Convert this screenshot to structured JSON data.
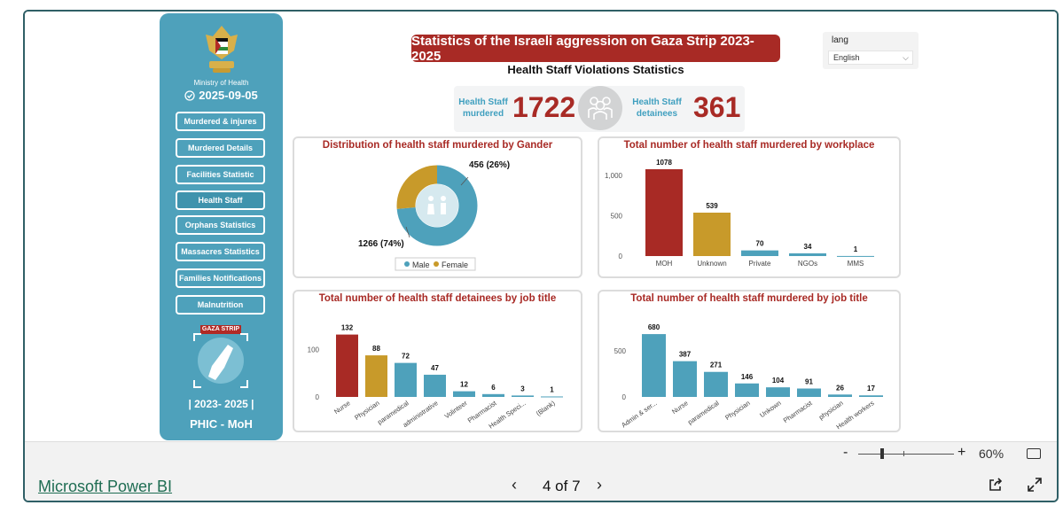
{
  "sidebar": {
    "ministry": "Ministry of Health",
    "date": "2025-09-05",
    "nav": [
      {
        "label": "Murdered & injures"
      },
      {
        "label": "Murdered Details"
      },
      {
        "label": "Facilities Statistic"
      },
      {
        "label": "Health Staff"
      },
      {
        "label": "Orphans Statistics"
      },
      {
        "label": "Massacres Statistics"
      },
      {
        "label": "Families Notifications"
      },
      {
        "label": "Malnutrition"
      }
    ],
    "gaza_label": "GAZA STRIP",
    "years": "|  2023- 2025  |",
    "org": "PHIC - MoH"
  },
  "header": {
    "title": "Statistics of the Israeli aggression on Gaza Strip 2023-2025",
    "subtitle": "Health Staff Violations Statistics"
  },
  "kpi": {
    "murdered_label": "Health Staff murdered",
    "murdered_value": "1722",
    "detainees_label": "Health Staff detainees",
    "detainees_value": "361"
  },
  "lang": {
    "label": "lang",
    "selected": "English"
  },
  "colors": {
    "accent_blue": "#4ea1bb",
    "red": "#a82a25",
    "gold": "#c89a2a"
  },
  "chart_data": [
    {
      "type": "pie",
      "title": "Distribution of health staff murdered by Gander",
      "categories": [
        "Male",
        "Female"
      ],
      "values": [
        1266,
        456
      ],
      "data_labels": [
        "1266 (74%)",
        "456 (26%)"
      ],
      "legend": [
        "Male",
        "Female"
      ]
    },
    {
      "type": "bar",
      "title": "Total number of health staff murdered by workplace",
      "categories": [
        "MOH",
        "Unknown",
        "Private",
        "NGOs",
        "MMS"
      ],
      "values": [
        1078,
        539,
        70,
        34,
        1
      ],
      "y_ticks": [
        "0",
        "500",
        "1,000"
      ],
      "ylim": [
        0,
        1100
      ]
    },
    {
      "type": "bar",
      "title": "Total number of health staff detainees by job title",
      "categories": [
        "Nurse",
        "Physician",
        "paramedical",
        "administrative",
        "Volinteer",
        "Pharmacist",
        "Health Speci...",
        "(Blank)"
      ],
      "values": [
        132,
        88,
        72,
        47,
        12,
        6,
        3,
        1
      ],
      "y_ticks": [
        "0",
        "100"
      ],
      "ylim": [
        0,
        135
      ]
    },
    {
      "type": "bar",
      "title": "Total number of health staff murdered by job title",
      "categories": [
        "Admin & ser...",
        "Nurse",
        "paramedical",
        "Physician",
        "Unkown",
        "Pharmacist",
        "physician",
        "Health workers"
      ],
      "values": [
        680,
        387,
        271,
        146,
        104,
        91,
        26,
        17
      ],
      "y_ticks": [
        "0",
        "500"
      ],
      "ylim": [
        0,
        700
      ]
    }
  ],
  "footer": {
    "zoom_minus": "-",
    "zoom_plus": "+",
    "zoom": "60%",
    "brand": "Microsoft Power BI",
    "page": "4 of 7",
    "prev": "‹",
    "next": "›"
  }
}
